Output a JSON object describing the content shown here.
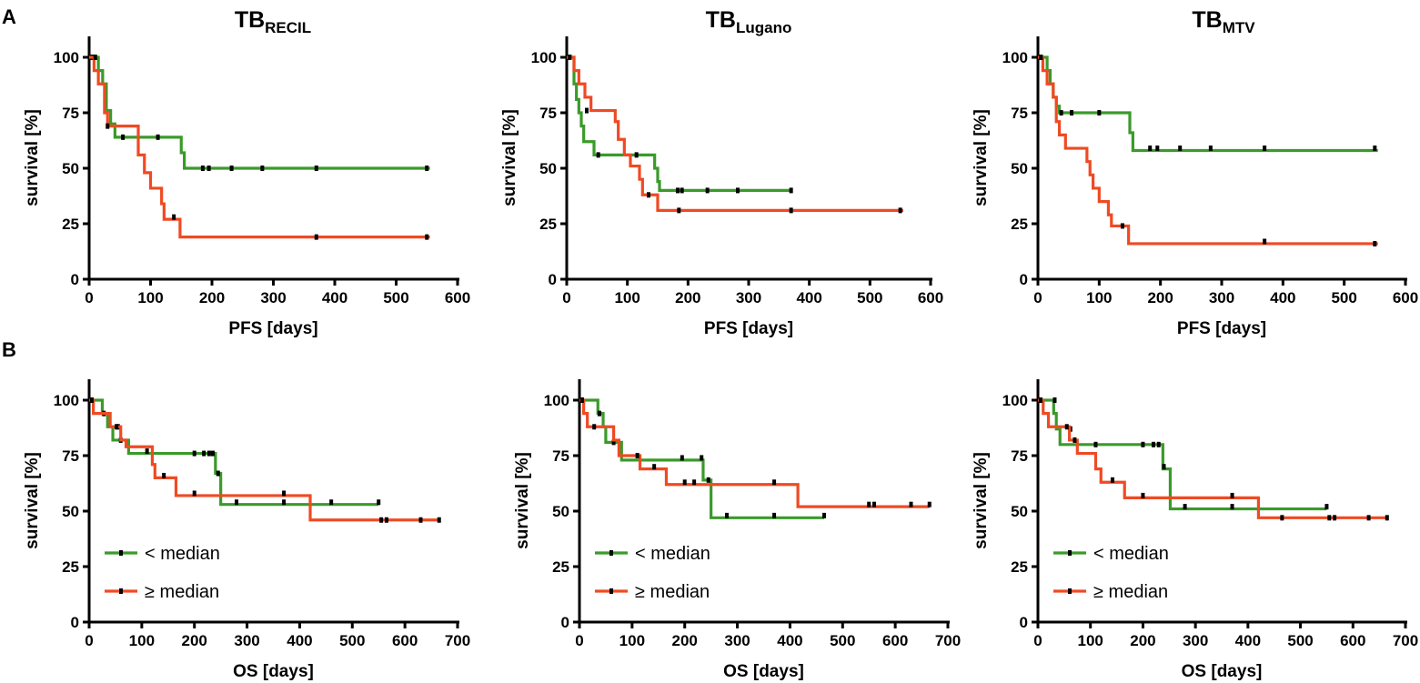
{
  "figure": {
    "panel_labels": [
      "A",
      "B"
    ],
    "column_titles": [
      {
        "base": "TB",
        "sub": "RECIL"
      },
      {
        "base": "TB",
        "sub": "Lugano"
      },
      {
        "base": "TB",
        "sub": "MTV"
      }
    ],
    "legend": [
      {
        "label": "< median",
        "color": "#3a9a2a"
      },
      {
        "label": "≥ median",
        "color": "#ef4a23"
      }
    ],
    "colors": {
      "below_median": "#3a9a2a",
      "above_median": "#ef4a23",
      "axis": "#000000",
      "censor": "#000000"
    }
  },
  "chart_data": [
    {
      "type": "line",
      "subtype": "kaplan-meier",
      "row": "A",
      "column_title": "TB RECIL",
      "xlabel": "PFS [days]",
      "ylabel": "survival [%]",
      "xlim": [
        0,
        600
      ],
      "ylim": [
        0,
        100
      ],
      "xticks": [
        0,
        100,
        200,
        300,
        400,
        500,
        600
      ],
      "yticks": [
        0,
        25,
        50,
        75,
        100
      ],
      "series": [
        {
          "name": "< median",
          "steps": [
            [
              0,
              100
            ],
            [
              15,
              94
            ],
            [
              22,
              88
            ],
            [
              28,
              76
            ],
            [
              35,
              70
            ],
            [
              42,
              64
            ],
            [
              150,
              57
            ],
            [
              155,
              50
            ],
            [
              555,
              50
            ]
          ],
          "censor": [
            [
              5,
              100
            ],
            [
              55,
              64
            ],
            [
              112,
              64
            ],
            [
              185,
              50
            ],
            [
              195,
              50
            ],
            [
              232,
              50
            ],
            [
              282,
              50
            ],
            [
              370,
              50
            ],
            [
              550,
              50
            ]
          ]
        },
        {
          "name": "≥ median",
          "steps": [
            [
              0,
              100
            ],
            [
              8,
              94
            ],
            [
              15,
              88
            ],
            [
              25,
              75
            ],
            [
              30,
              69
            ],
            [
              80,
              56
            ],
            [
              90,
              48
            ],
            [
              100,
              41
            ],
            [
              118,
              34
            ],
            [
              122,
              27
            ],
            [
              148,
              19
            ],
            [
              555,
              19
            ]
          ],
          "censor": [
            [
              10,
              100
            ],
            [
              30,
              69
            ],
            [
              138,
              28
            ],
            [
              370,
              19
            ],
            [
              550,
              19
            ]
          ]
        }
      ]
    },
    {
      "type": "line",
      "subtype": "kaplan-meier",
      "row": "A",
      "column_title": "TB Lugano",
      "xlabel": "PFS [days]",
      "ylabel": "survival [%]",
      "xlim": [
        0,
        600
      ],
      "ylim": [
        0,
        100
      ],
      "xticks": [
        0,
        100,
        200,
        300,
        400,
        500,
        600
      ],
      "yticks": [
        0,
        25,
        50,
        75,
        100
      ],
      "series": [
        {
          "name": "< median",
          "steps": [
            [
              0,
              100
            ],
            [
              12,
              88
            ],
            [
              16,
              81
            ],
            [
              20,
              75
            ],
            [
              24,
              69
            ],
            [
              28,
              62
            ],
            [
              45,
              56
            ],
            [
              145,
              50
            ],
            [
              150,
              44
            ],
            [
              153,
              40
            ],
            [
              370,
              40
            ]
          ],
          "censor": [
            [
              5,
              100
            ],
            [
              52,
              56
            ],
            [
              115,
              56
            ],
            [
              183,
              40
            ],
            [
              190,
              40
            ],
            [
              232,
              40
            ],
            [
              282,
              40
            ],
            [
              370,
              40
            ]
          ]
        },
        {
          "name": "≥ median",
          "steps": [
            [
              0,
              100
            ],
            [
              12,
              94
            ],
            [
              20,
              88
            ],
            [
              30,
              82
            ],
            [
              40,
              76
            ],
            [
              80,
              71
            ],
            [
              85,
              63
            ],
            [
              95,
              56
            ],
            [
              105,
              51
            ],
            [
              120,
              45
            ],
            [
              125,
              38
            ],
            [
              150,
              31
            ],
            [
              555,
              31
            ]
          ],
          "censor": [
            [
              5,
              100
            ],
            [
              33,
              76
            ],
            [
              135,
              38
            ],
            [
              185,
              31
            ],
            [
              370,
              31
            ],
            [
              550,
              31
            ]
          ]
        }
      ]
    },
    {
      "type": "line",
      "subtype": "kaplan-meier",
      "row": "A",
      "column_title": "TB MTV",
      "xlabel": "PFS [days]",
      "ylabel": "survival [%]",
      "xlim": [
        0,
        600
      ],
      "ylim": [
        0,
        100
      ],
      "xticks": [
        0,
        100,
        200,
        300,
        400,
        500,
        600
      ],
      "yticks": [
        0,
        25,
        50,
        75,
        100
      ],
      "series": [
        {
          "name": "< median",
          "steps": [
            [
              0,
              100
            ],
            [
              15,
              94
            ],
            [
              20,
              88
            ],
            [
              25,
              82
            ],
            [
              30,
              78
            ],
            [
              35,
              75
            ],
            [
              150,
              66
            ],
            [
              155,
              58
            ],
            [
              555,
              58
            ]
          ],
          "censor": [
            [
              5,
              100
            ],
            [
              38,
              75
            ],
            [
              55,
              75
            ],
            [
              100,
              75
            ],
            [
              183,
              59
            ],
            [
              195,
              59
            ],
            [
              232,
              59
            ],
            [
              282,
              59
            ],
            [
              370,
              59
            ],
            [
              550,
              59
            ]
          ]
        },
        {
          "name": "≥ median",
          "steps": [
            [
              0,
              100
            ],
            [
              8,
              94
            ],
            [
              15,
              88
            ],
            [
              25,
              82
            ],
            [
              30,
              71
            ],
            [
              35,
              65
            ],
            [
              45,
              59
            ],
            [
              80,
              53
            ],
            [
              85,
              47
            ],
            [
              90,
              41
            ],
            [
              100,
              35
            ],
            [
              115,
              29
            ],
            [
              120,
              24
            ],
            [
              148,
              16
            ],
            [
              555,
              16
            ]
          ],
          "censor": [
            [
              5,
              100
            ],
            [
              138,
              24
            ],
            [
              370,
              17
            ],
            [
              550,
              16
            ]
          ]
        }
      ]
    },
    {
      "type": "line",
      "subtype": "kaplan-meier",
      "row": "B",
      "column_title": "TB RECIL",
      "xlabel": "OS [days]",
      "ylabel": "survival [%]",
      "xlim": [
        0,
        700
      ],
      "ylim": [
        0,
        100
      ],
      "xticks": [
        0,
        100,
        200,
        300,
        400,
        500,
        600,
        700
      ],
      "yticks": [
        0,
        25,
        50,
        75,
        100
      ],
      "series": [
        {
          "name": "< median",
          "steps": [
            [
              0,
              100
            ],
            [
              25,
              94
            ],
            [
              35,
              88
            ],
            [
              45,
              82
            ],
            [
              75,
              76
            ],
            [
              240,
              67
            ],
            [
              250,
              53
            ],
            [
              550,
              53
            ]
          ],
          "censor": [
            [
              5,
              100
            ],
            [
              28,
              94
            ],
            [
              55,
              88
            ],
            [
              60,
              82
            ],
            [
              200,
              76
            ],
            [
              218,
              76
            ],
            [
              228,
              76
            ],
            [
              235,
              76
            ],
            [
              245,
              67
            ],
            [
              280,
              54
            ],
            [
              370,
              54
            ],
            [
              460,
              54
            ],
            [
              550,
              54
            ]
          ]
        },
        {
          "name": "≥ median",
          "steps": [
            [
              0,
              100
            ],
            [
              8,
              94
            ],
            [
              40,
              88
            ],
            [
              60,
              82
            ],
            [
              70,
              79
            ],
            [
              120,
              71
            ],
            [
              125,
              65
            ],
            [
              165,
              57
            ],
            [
              420,
              46
            ],
            [
              665,
              46
            ]
          ],
          "censor": [
            [
              5,
              100
            ],
            [
              52,
              88
            ],
            [
              110,
              77
            ],
            [
              142,
              66
            ],
            [
              200,
              58
            ],
            [
              370,
              58
            ],
            [
              555,
              46
            ],
            [
              565,
              46
            ],
            [
              630,
              46
            ],
            [
              665,
              46
            ]
          ]
        }
      ]
    },
    {
      "type": "line",
      "subtype": "kaplan-meier",
      "row": "B",
      "column_title": "TB Lugano",
      "xlabel": "OS [days]",
      "ylabel": "survival [%]",
      "xlim": [
        0,
        700
      ],
      "ylim": [
        0,
        100
      ],
      "xticks": [
        0,
        100,
        200,
        300,
        400,
        500,
        600,
        700
      ],
      "yticks": [
        0,
        25,
        50,
        75,
        100
      ],
      "series": [
        {
          "name": "< median",
          "steps": [
            [
              0,
              100
            ],
            [
              35,
              94
            ],
            [
              45,
              88
            ],
            [
              50,
              81
            ],
            [
              80,
              73
            ],
            [
              235,
              64
            ],
            [
              250,
              47
            ],
            [
              465,
              47
            ]
          ],
          "censor": [
            [
              5,
              100
            ],
            [
              38,
              94
            ],
            [
              65,
              81
            ],
            [
              195,
              74
            ],
            [
              232,
              74
            ],
            [
              245,
              64
            ],
            [
              280,
              48
            ],
            [
              370,
              48
            ],
            [
              465,
              48
            ]
          ]
        },
        {
          "name": "≥ median",
          "steps": [
            [
              0,
              100
            ],
            [
              8,
              94
            ],
            [
              15,
              88
            ],
            [
              65,
              82
            ],
            [
              75,
              75
            ],
            [
              115,
              69
            ],
            [
              165,
              62
            ],
            [
              415,
              52
            ],
            [
              665,
              52
            ]
          ],
          "censor": [
            [
              5,
              100
            ],
            [
              28,
              88
            ],
            [
              110,
              75
            ],
            [
              142,
              70
            ],
            [
              200,
              63
            ],
            [
              218,
              63
            ],
            [
              370,
              63
            ],
            [
              550,
              53
            ],
            [
              560,
              53
            ],
            [
              630,
              53
            ],
            [
              665,
              53
            ]
          ]
        }
      ]
    },
    {
      "type": "line",
      "subtype": "kaplan-meier",
      "row": "B",
      "column_title": "TB MTV",
      "xlabel": "OS [days]",
      "ylabel": "survival [%]",
      "xlim": [
        0,
        700
      ],
      "ylim": [
        0,
        100
      ],
      "xticks": [
        0,
        100,
        200,
        300,
        400,
        500,
        600,
        700
      ],
      "yticks": [
        0,
        25,
        50,
        75,
        100
      ],
      "series": [
        {
          "name": "< median",
          "steps": [
            [
              0,
              100
            ],
            [
              30,
              94
            ],
            [
              35,
              87
            ],
            [
              42,
              80
            ],
            [
              85,
              80
            ],
            [
              230,
              80
            ],
            [
              238,
              69
            ],
            [
              252,
              51
            ],
            [
              550,
              51
            ]
          ],
          "censor": [
            [
              5,
              100
            ],
            [
              32,
              100
            ],
            [
              62,
              87
            ],
            [
              110,
              80
            ],
            [
              200,
              80
            ],
            [
              220,
              80
            ],
            [
              230,
              80
            ],
            [
              240,
              70
            ],
            [
              280,
              52
            ],
            [
              370,
              52
            ],
            [
              550,
              52
            ]
          ]
        },
        {
          "name": "≥ median",
          "steps": [
            [
              0,
              100
            ],
            [
              10,
              94
            ],
            [
              20,
              88
            ],
            [
              60,
              82
            ],
            [
              75,
              76
            ],
            [
              110,
              69
            ],
            [
              120,
              63
            ],
            [
              165,
              56
            ],
            [
              420,
              47
            ],
            [
              665,
              47
            ]
          ],
          "censor": [
            [
              5,
              100
            ],
            [
              55,
              88
            ],
            [
              70,
              82
            ],
            [
              142,
              64
            ],
            [
              200,
              57
            ],
            [
              370,
              57
            ],
            [
              465,
              47
            ],
            [
              555,
              47
            ],
            [
              565,
              47
            ],
            [
              630,
              47
            ],
            [
              665,
              47
            ]
          ]
        }
      ]
    }
  ]
}
